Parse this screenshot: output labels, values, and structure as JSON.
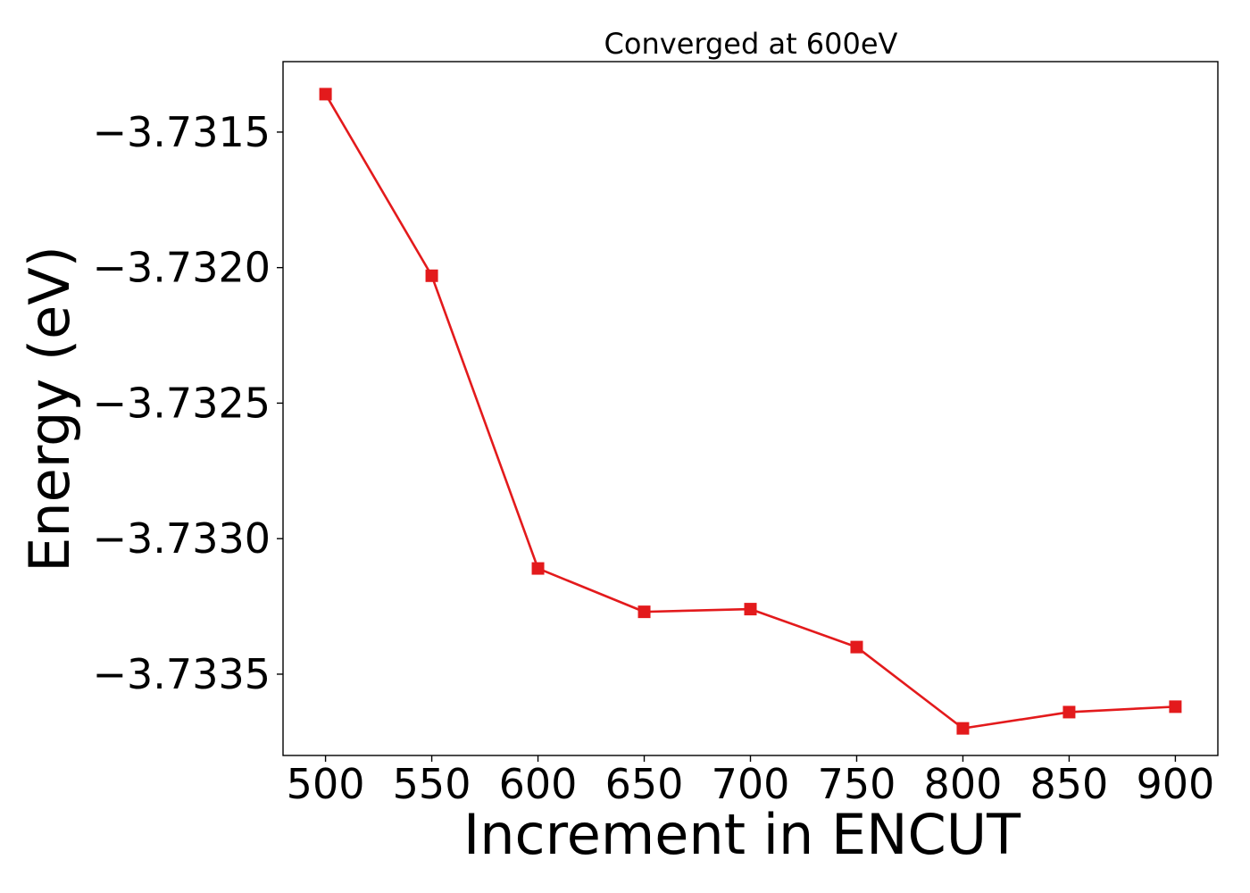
{
  "chart_data": {
    "type": "line",
    "title": "Converged at 600eV",
    "xlabel": "Increment in ENCUT",
    "ylabel": "Energy (eV)",
    "x": [
      500,
      550,
      600,
      650,
      700,
      750,
      800,
      850,
      900
    ],
    "series": [
      {
        "values": [
          -3.73136,
          -3.73203,
          -3.73311,
          -3.73327,
          -3.73326,
          -3.7334,
          -3.7337,
          -3.73364,
          -3.73362
        ],
        "color": "#e31a1c",
        "marker": "square"
      }
    ],
    "xticks": [
      500,
      550,
      600,
      650,
      700,
      750,
      800,
      850,
      900
    ],
    "xtick_labels": [
      "500",
      "550",
      "600",
      "650",
      "700",
      "750",
      "800",
      "850",
      "900"
    ],
    "yticks": [
      -3.7315,
      -3.732,
      -3.7325,
      -3.733,
      -3.7335
    ],
    "ytick_labels": [
      "−3.7315",
      "−3.7320",
      "−3.7325",
      "−3.7330",
      "−3.7335"
    ],
    "xlim": [
      480,
      920
    ],
    "ylim": [
      -3.7338,
      -3.73124
    ],
    "grid": false,
    "legend": false
  }
}
